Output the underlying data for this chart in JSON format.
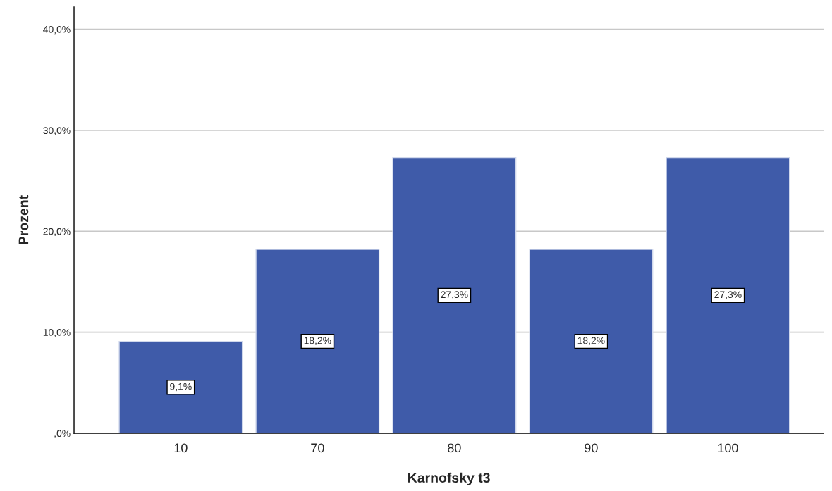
{
  "chart_data": {
    "type": "bar",
    "xlabel": "Karnofsky t3",
    "ylabel": "Prozent",
    "categories": [
      "10",
      "70",
      "80",
      "90",
      "100"
    ],
    "values": [
      9.1,
      18.2,
      27.3,
      18.2,
      27.3
    ],
    "value_labels": [
      "9,1%",
      "18,2%",
      "27,3%",
      "18,2%",
      "27,3%"
    ],
    "color": "#3f5ba9",
    "ylim": [
      0,
      42.2
    ],
    "yticks": [
      {
        "value": 0,
        "label": ",0%"
      },
      {
        "value": 10,
        "label": "10,0%"
      },
      {
        "value": 20,
        "label": "20,0%"
      },
      {
        "value": 30,
        "label": "30,0%"
      },
      {
        "value": 40,
        "label": "40,0%"
      }
    ],
    "grid": "y",
    "legend": false
  }
}
